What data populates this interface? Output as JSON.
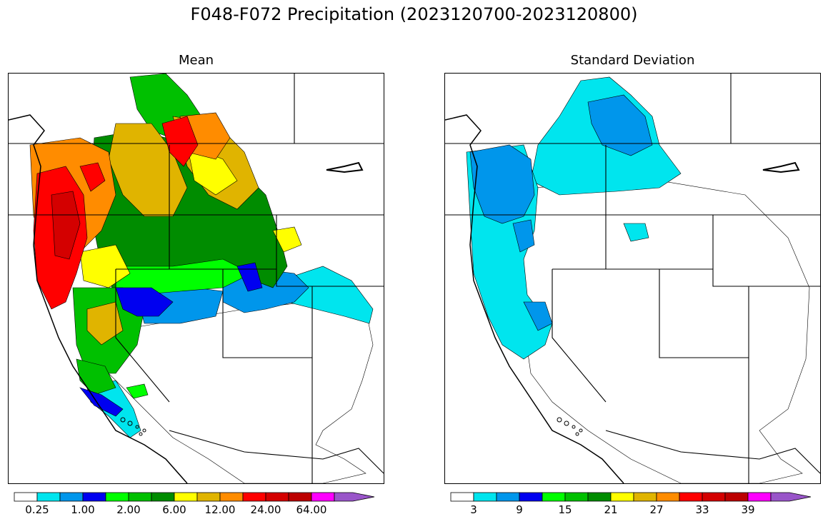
{
  "title": "F048-F072 Precipitation (2023120700-2023120800)",
  "panels": [
    {
      "id": "mean",
      "title": "Mean",
      "colorbar": {
        "colors": [
          "#ffffff",
          "#00e5ee",
          "#0096eb",
          "#0000f0",
          "#00ff00",
          "#00c000",
          "#008c00",
          "#ffff00",
          "#e0b400",
          "#ff8c00",
          "#ff0000",
          "#d40000",
          "#bc0000",
          "#ff00ff",
          "#9955c9"
        ],
        "ticks": [
          {
            "label": "0.25",
            "boundary": 1
          },
          {
            "label": "1.00",
            "boundary": 3
          },
          {
            "label": "2.00",
            "boundary": 5
          },
          {
            "label": "6.00",
            "boundary": 7
          },
          {
            "label": "12.00",
            "boundary": 9
          },
          {
            "label": "24.00",
            "boundary": 11
          },
          {
            "label": "64.00",
            "boundary": 13
          }
        ]
      }
    },
    {
      "id": "stddev",
      "title": "Standard Deviation",
      "colorbar": {
        "colors": [
          "#ffffff",
          "#00e5ee",
          "#0096eb",
          "#0000f0",
          "#00ff00",
          "#00c000",
          "#008c00",
          "#ffff00",
          "#e0b400",
          "#ff8c00",
          "#ff0000",
          "#d40000",
          "#bc0000",
          "#ff00ff",
          "#9955c9"
        ],
        "ticks": [
          {
            "label": "3",
            "boundary": 1
          },
          {
            "label": "9",
            "boundary": 3
          },
          {
            "label": "15",
            "boundary": 5
          },
          {
            "label": "21",
            "boundary": 7
          },
          {
            "label": "27",
            "boundary": 9
          },
          {
            "label": "33",
            "boundary": 11
          },
          {
            "label": "39",
            "boundary": 13
          }
        ]
      }
    }
  ]
}
